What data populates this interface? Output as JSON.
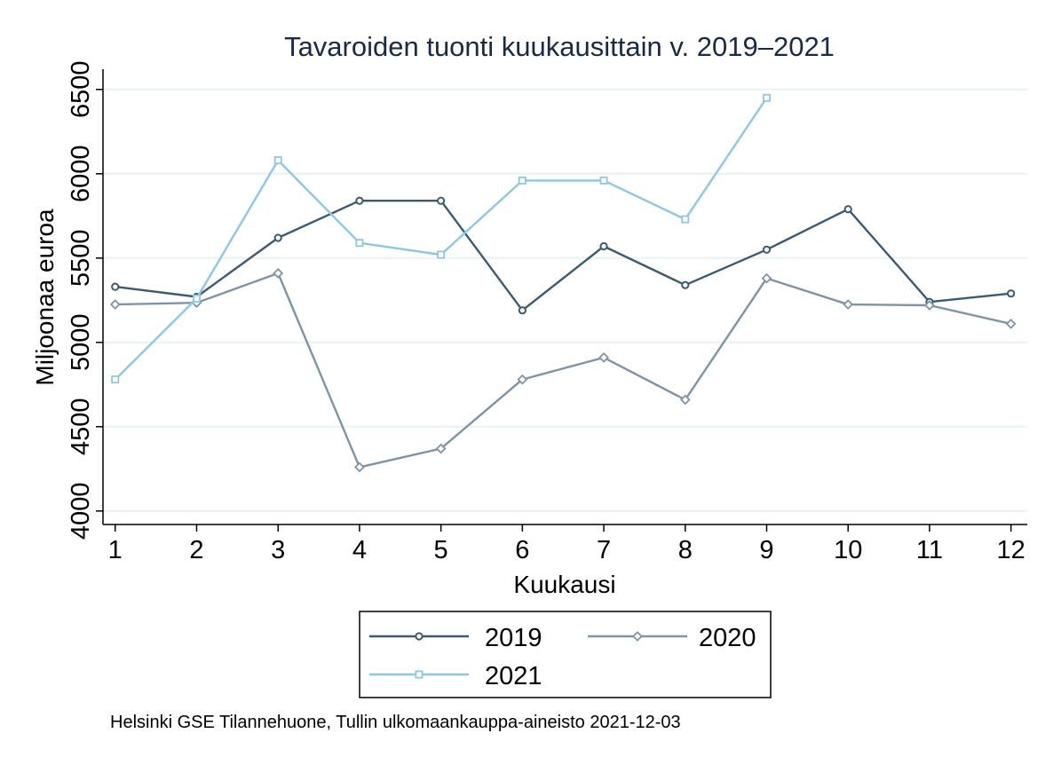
{
  "chart_data": {
    "type": "line",
    "title": "Tavaroiden tuonti kuukausittain v. 2019–2021",
    "xlabel": "Kuukausi",
    "ylabel": "Miljoonaa euroa",
    "x": [
      1,
      2,
      3,
      4,
      5,
      6,
      7,
      8,
      9,
      10,
      11,
      12
    ],
    "xlim": [
      0.85,
      12.2
    ],
    "ylim": [
      3920,
      6620
    ],
    "yticks": [
      4000,
      4500,
      5000,
      5500,
      6000,
      6500
    ],
    "xticks": [
      1,
      2,
      3,
      4,
      5,
      6,
      7,
      8,
      9,
      10,
      11,
      12
    ],
    "grid": true,
    "legend_position": "bottom",
    "series": [
      {
        "name": "2019",
        "color": "#3d5a73",
        "marker": "circle",
        "values": [
          5330,
          5270,
          5620,
          5840,
          5840,
          5190,
          5570,
          5340,
          5550,
          5790,
          5240,
          5290
        ]
      },
      {
        "name": "2020",
        "color": "#7e93a6",
        "marker": "diamond",
        "values": [
          5225,
          5235,
          5410,
          4260,
          4370,
          4780,
          4910,
          4660,
          5380,
          5225,
          5220,
          5110
        ]
      },
      {
        "name": "2021",
        "color": "#8ec6e6",
        "marker": "square",
        "values": [
          4780,
          5260,
          6080,
          5590,
          5520,
          5960,
          5960,
          5730,
          6450,
          null,
          null,
          null
        ]
      }
    ],
    "caption": "Helsinki GSE Tilannehuone, Tullin ulkomaankauppa-aineisto 2021-12-03"
  }
}
